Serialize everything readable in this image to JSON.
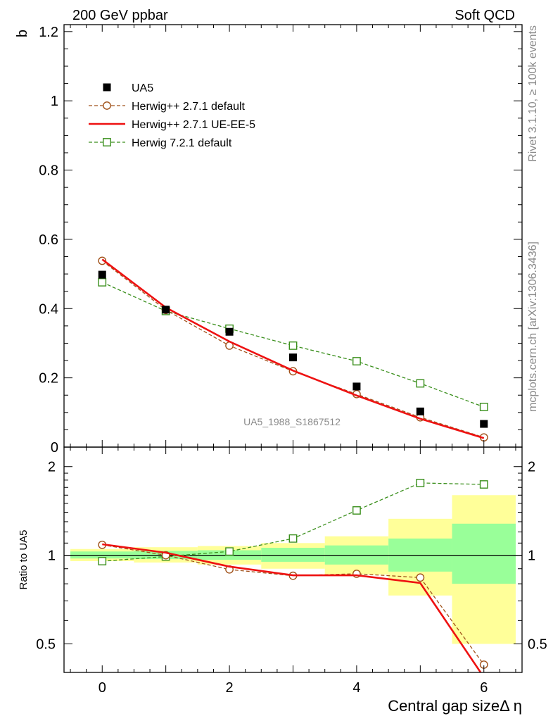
{
  "header": {
    "left_title": "200 GeV ppbar",
    "right_title": "Soft QCD"
  },
  "side_labels": {
    "rivet": "Rivet 3.1.10, ≥ 100k events",
    "mcplots": "mcplots.cern.ch [arXiv:1306.3436]"
  },
  "watermark": "UA5_1988_S1867512",
  "chart_data": [
    {
      "type": "line",
      "panel": "main",
      "ylabel": "b",
      "xlabel": "",
      "xlim": [
        -0.6,
        6.6
      ],
      "ylim": [
        0,
        1.22
      ],
      "yticks": [
        0,
        0.2,
        0.4,
        0.6,
        0.8,
        1,
        1.2
      ],
      "ytick_labels": [
        "0",
        "0.2",
        "0.4",
        "0.6",
        "0.8",
        "1",
        "1.2"
      ],
      "x": [
        0,
        1,
        2,
        3,
        4,
        5,
        6
      ],
      "series": [
        {
          "name": "UA5",
          "style": "data-squares",
          "color": "#000000",
          "values": [
            0.498,
            0.397,
            0.333,
            0.259,
            0.175,
            0.103,
            0.067
          ]
        },
        {
          "name": "Herwig++ 2.7.1 default",
          "style": "dashed-circle",
          "color": "#a0521a",
          "values": [
            0.538,
            0.396,
            0.293,
            0.219,
            0.153,
            0.086,
            0.028
          ]
        },
        {
          "name": "Herwig++ 2.7.1 UE-EE-5",
          "style": "solid",
          "color": "#ee1111",
          "values": [
            0.542,
            0.403,
            0.305,
            0.221,
            0.149,
            0.082,
            0.026
          ]
        },
        {
          "name": "Herwig 7.2.1 default",
          "style": "dashed-square",
          "color": "#3a8f1c",
          "values": [
            0.476,
            0.393,
            0.342,
            0.293,
            0.248,
            0.184,
            0.116
          ]
        }
      ],
      "legend_position": "top-left"
    },
    {
      "type": "line",
      "panel": "ratio",
      "ylabel": "Ratio to UA5",
      "xlabel": "Central gap sizeΔ η",
      "xlim": [
        -0.6,
        6.6
      ],
      "ylim": [
        0.4,
        2.33
      ],
      "yticks": [
        0.5,
        1,
        2
      ],
      "ytick_labels": [
        "0.5",
        "1",
        "2"
      ],
      "xticks": [
        0,
        2,
        4,
        6
      ],
      "xtick_labels": [
        "0",
        "2",
        "4",
        "6"
      ],
      "x": [
        0,
        1,
        2,
        3,
        4,
        5,
        6
      ],
      "bands": {
        "bin_edges": [
          -0.5,
          0.5,
          1.5,
          2.5,
          3.5,
          4.5,
          5.5,
          6.5
        ],
        "stat_low": [
          0.975,
          0.97,
          0.965,
          0.95,
          0.93,
          0.88,
          0.8
        ],
        "stat_high": [
          1.03,
          1.035,
          1.04,
          1.06,
          1.08,
          1.14,
          1.28
        ],
        "total_low": [
          0.955,
          0.945,
          0.93,
          0.9,
          0.86,
          0.73,
          0.5
        ],
        "total_high": [
          1.05,
          1.065,
          1.075,
          1.1,
          1.16,
          1.33,
          1.6
        ],
        "stat_color": "#99ff99",
        "total_color": "#ffff99"
      },
      "series": [
        {
          "name": "Herwig++ 2.7.1 default",
          "style": "dashed-circle",
          "color": "#a0521a",
          "values": [
            1.085,
            1.0,
            0.895,
            0.852,
            0.865,
            0.84,
            0.425
          ]
        },
        {
          "name": "Herwig++ 2.7.1 UE-EE-5",
          "style": "solid",
          "color": "#ee1111",
          "values": [
            1.09,
            1.02,
            0.915,
            0.855,
            0.855,
            0.805,
            0.385
          ]
        },
        {
          "name": "Herwig 7.2.1 default",
          "style": "dashed-square",
          "color": "#3a8f1c",
          "values": [
            0.955,
            0.99,
            1.03,
            1.14,
            1.42,
            1.76,
            1.74
          ]
        }
      ]
    }
  ]
}
